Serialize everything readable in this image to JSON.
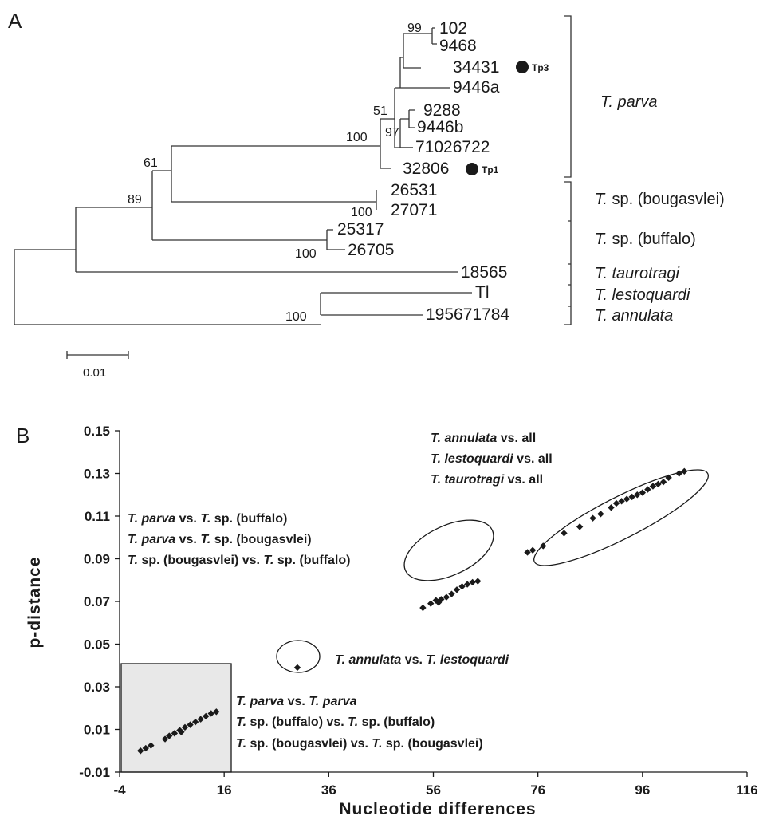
{
  "panel_a": {
    "label": "A",
    "scale_bar": "0.01",
    "tip_labels": {
      "t102": "102",
      "t9468": "9468",
      "t34431": "34431",
      "t9446a": "9446a",
      "t9288": "9288",
      "t9446b": "9446b",
      "t71026722": "71026722",
      "t32806": "32806",
      "t26531": "26531",
      "t27071": "27071",
      "t25317": "25317",
      "t26705": "26705",
      "t18565": "18565",
      "tTl": "Tl",
      "t195671784": "195671784"
    },
    "markers": {
      "tp3": "Tp3",
      "tp1": "Tp1"
    },
    "bootstrap": {
      "b99": "99",
      "b51": "51",
      "b97": "97",
      "b100_parva": "100",
      "b61": "61",
      "b89": "89",
      "b100_boug": "100",
      "b100_buff": "100",
      "b100_ann": "100"
    },
    "clades": {
      "parva": "parva",
      "bougasvlei": "sp. (bougasvlei)",
      "buffalo": "sp. (buffalo)",
      "taurotragi": "taurotragi",
      "lestoquardi": "lestoquardi",
      "annulata": "annulata",
      "genus": "T."
    }
  },
  "panel_b": {
    "label": "B",
    "ann_top": {
      "l1_sp": "T. annulata",
      "l1_rest": " vs. all",
      "l2_sp": "T. lestoquardi",
      "l2_rest": " vs. all",
      "l3_sp": "T. taurotragi",
      "l3_rest": " vs. all"
    },
    "ann_mid": {
      "l1_a": "T. parva",
      "l1_b": " vs. ",
      "l1_c": "T.",
      "l1_d": " sp. (buffalo)",
      "l2_a": "T. parva",
      "l2_b": " vs. ",
      "l2_c": "T.",
      "l2_d": " sp. (bougasvlei)",
      "l3_a": "T.",
      "l3_b": " sp. (bougasvlei) vs. ",
      "l3_c": "T.",
      "l3_d": " sp. (buffalo)"
    },
    "ann_single": {
      "a": "T. annulata",
      "b": " vs. ",
      "c": "T. lestoquardi"
    },
    "ann_bottom": {
      "l1_a": "T. parva",
      "l1_b": " vs. ",
      "l1_c": "T. parva",
      "l2_a": "T.",
      "l2_b": " sp. (buffalo) vs. ",
      "l2_c": "T.",
      "l2_d": " sp. (buffalo)",
      "l3_a": "T.",
      "l3_b": " sp. (bougasvlei) vs. ",
      "l3_c": "T.",
      "l3_d": " sp. (bougasvlei)"
    }
  },
  "chart_data": {
    "type": "scatter",
    "xlabel": "Nucleotide differences",
    "ylabel": "p-distance",
    "xlim": [
      -4,
      116
    ],
    "ylim": [
      -0.01,
      0.15
    ],
    "x_ticks": [
      -4,
      16,
      36,
      56,
      76,
      96,
      116
    ],
    "y_ticks": [
      -0.01,
      0.01,
      0.03,
      0.05,
      0.07,
      0.09,
      0.11,
      0.13,
      0.15
    ],
    "x_tick_labels": [
      "-4",
      "16",
      "36",
      "56",
      "76",
      "96",
      "116"
    ],
    "y_tick_labels": [
      "-0.01",
      "0.01",
      "0.03",
      "0.05",
      "0.07",
      "0.09",
      "0.11",
      "0.13",
      "0.15"
    ],
    "marker_color": "#1a1a1a",
    "highlight_fill": "#e8e8e8",
    "series": [
      {
        "values": [
          {
            "x": 0,
            "y": 0.0
          },
          {
            "x": 1,
            "y": 0.0012
          },
          {
            "x": 2,
            "y": 0.0025
          },
          {
            "x": 4.7,
            "y": 0.0055
          },
          {
            "x": 5.5,
            "y": 0.007
          },
          {
            "x": 6.5,
            "y": 0.0082
          },
          {
            "x": 7.5,
            "y": 0.0096
          },
          {
            "x": 8.5,
            "y": 0.011
          },
          {
            "x": 9.5,
            "y": 0.0122
          },
          {
            "x": 10.5,
            "y": 0.0135
          },
          {
            "x": 11.5,
            "y": 0.0148
          },
          {
            "x": 12.5,
            "y": 0.0162
          },
          {
            "x": 13.5,
            "y": 0.0175
          },
          {
            "x": 14.5,
            "y": 0.0183
          },
          {
            "x": 7.8,
            "y": 0.0088
          },
          {
            "x": 30,
            "y": 0.039
          },
          {
            "x": 54,
            "y": 0.067
          },
          {
            "x": 55.5,
            "y": 0.069
          },
          {
            "x": 56.5,
            "y": 0.0705
          },
          {
            "x": 57.5,
            "y": 0.071
          },
          {
            "x": 58.5,
            "y": 0.072
          },
          {
            "x": 59.5,
            "y": 0.0735
          },
          {
            "x": 60.5,
            "y": 0.0755
          },
          {
            "x": 61.5,
            "y": 0.077
          },
          {
            "x": 62.5,
            "y": 0.078
          },
          {
            "x": 63.5,
            "y": 0.079
          },
          {
            "x": 64.5,
            "y": 0.0795
          },
          {
            "x": 57,
            "y": 0.0695
          },
          {
            "x": 74,
            "y": 0.093
          },
          {
            "x": 75,
            "y": 0.094
          },
          {
            "x": 77,
            "y": 0.096
          },
          {
            "x": 81,
            "y": 0.102
          },
          {
            "x": 84,
            "y": 0.105
          },
          {
            "x": 86.5,
            "y": 0.109
          },
          {
            "x": 88,
            "y": 0.111
          },
          {
            "x": 90,
            "y": 0.114
          },
          {
            "x": 91,
            "y": 0.116
          },
          {
            "x": 92,
            "y": 0.117
          },
          {
            "x": 93,
            "y": 0.118
          },
          {
            "x": 94,
            "y": 0.119
          },
          {
            "x": 95,
            "y": 0.12
          },
          {
            "x": 96,
            "y": 0.121
          },
          {
            "x": 97,
            "y": 0.1225
          },
          {
            "x": 98,
            "y": 0.124
          },
          {
            "x": 99,
            "y": 0.125
          },
          {
            "x": 100,
            "y": 0.126
          },
          {
            "x": 101,
            "y": 0.128
          },
          {
            "x": 103,
            "y": 0.13
          },
          {
            "x": 104,
            "y": 0.131
          }
        ]
      }
    ]
  }
}
